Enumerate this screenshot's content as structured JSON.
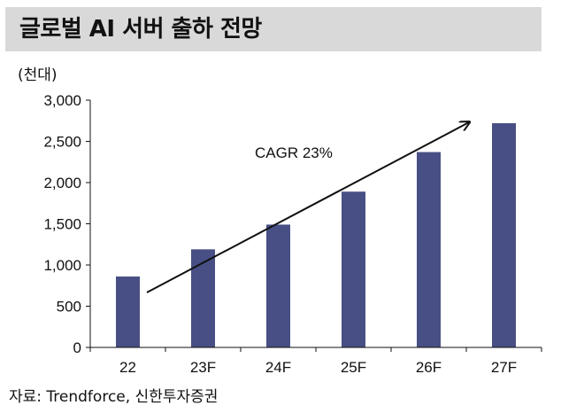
{
  "header": {
    "title": "글로벌 AI 서버 출하 전망"
  },
  "chart_data": {
    "type": "bar",
    "unit_label": "(천대)",
    "categories": [
      "22",
      "23F",
      "24F",
      "25F",
      "26F",
      "27F"
    ],
    "series": [
      {
        "values": [
          860,
          1190,
          1490,
          1890,
          2370,
          2720
        ]
      }
    ],
    "ylim": [
      0,
      3000
    ],
    "yticks": [
      0,
      500,
      1000,
      1500,
      2000,
      2500,
      3000
    ],
    "ytick_labels": [
      "0",
      "500",
      "1,000",
      "1,500",
      "2,000",
      "2,500",
      "3,000"
    ],
    "annotation": "CAGR 23%",
    "bar_color": "#474f85",
    "grid": false
  },
  "footer": {
    "source": "자료: Trendforce, 신한투자증권"
  }
}
